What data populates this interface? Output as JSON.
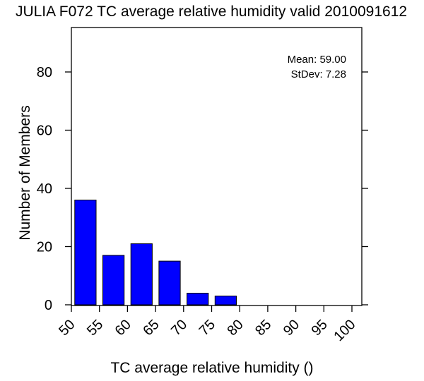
{
  "chart_data": {
    "type": "bar",
    "title": "JULIA F072 TC average relative humidity valid 2010091612",
    "xlabel": "TC average relative humidity ()",
    "ylabel": "Number of Members",
    "bin_edges": [
      50,
      55,
      60,
      65,
      70,
      75,
      80,
      85,
      90,
      95,
      100
    ],
    "x_tick_labels": [
      "50",
      "55",
      "60",
      "65",
      "70",
      "75",
      "80",
      "85",
      "90",
      "95",
      "100"
    ],
    "values": [
      36,
      17,
      21,
      15,
      4,
      3,
      0,
      0,
      0,
      0
    ],
    "xlim": [
      50,
      100
    ],
    "ylim": [
      0,
      95
    ],
    "y_ticks": [
      0,
      20,
      40,
      60,
      80
    ],
    "y_tick_labels": [
      "0",
      "20",
      "40",
      "60",
      "80"
    ],
    "bar_color": "#0000ff",
    "grid": false,
    "annotations": {
      "mean": "Mean: 59.00",
      "stdev": "StDev: 7.28"
    }
  }
}
